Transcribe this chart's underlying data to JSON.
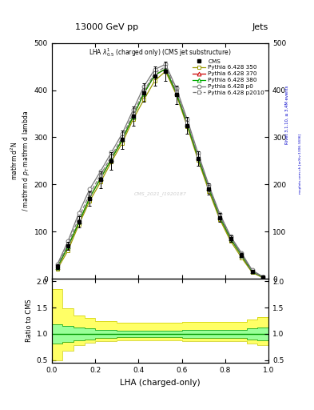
{
  "title_top": "13000 GeV pp",
  "title_right": "Jets",
  "plot_title": "LHA $\\lambda^{1}_{0.5}$ (charged only) (CMS jet substructure)",
  "xlabel": "LHA (charged-only)",
  "watermark": "CMS_2021_I1920187",
  "rivet_label": "Rivet 3.1.10, ≥ 3.4M events",
  "mcplots_label": "mcplots.cern.ch [arXiv:1306.3436]",
  "xbins": [
    0.0,
    0.05,
    0.1,
    0.15,
    0.2,
    0.25,
    0.3,
    0.35,
    0.4,
    0.45,
    0.5,
    0.55,
    0.6,
    0.65,
    0.7,
    0.75,
    0.8,
    0.85,
    0.9,
    0.95,
    1.0
  ],
  "cms_y": [
    25,
    70,
    120,
    170,
    210,
    250,
    295,
    345,
    395,
    430,
    440,
    390,
    325,
    255,
    190,
    130,
    85,
    50,
    15,
    3
  ],
  "cms_yerr": [
    5,
    8,
    12,
    16,
    18,
    19,
    20,
    20,
    20,
    20,
    20,
    20,
    18,
    15,
    12,
    9,
    7,
    4,
    2,
    1
  ],
  "p350_y": [
    20,
    60,
    115,
    165,
    205,
    248,
    288,
    338,
    380,
    420,
    440,
    390,
    323,
    252,
    186,
    126,
    80,
    45,
    13,
    2
  ],
  "p370_y": [
    24,
    68,
    120,
    172,
    213,
    254,
    295,
    344,
    393,
    432,
    445,
    394,
    328,
    257,
    192,
    131,
    85,
    50,
    15,
    3
  ],
  "p380_y": [
    24,
    68,
    120,
    172,
    213,
    254,
    295,
    344,
    393,
    432,
    445,
    394,
    328,
    257,
    192,
    131,
    85,
    50,
    15,
    3
  ],
  "p0_y": [
    30,
    80,
    140,
    190,
    228,
    268,
    308,
    358,
    408,
    444,
    455,
    404,
    338,
    266,
    198,
    138,
    90,
    55,
    18,
    4
  ],
  "p2010_y": [
    27,
    73,
    130,
    180,
    220,
    260,
    300,
    350,
    398,
    436,
    450,
    398,
    332,
    261,
    195,
    134,
    88,
    52,
    16,
    3
  ],
  "ylim_main": [
    0,
    500
  ],
  "yticks_main": [
    0,
    100,
    200,
    300,
    400,
    500
  ],
  "ylim_ratio": [
    0.45,
    2.05
  ],
  "ratio_yticks": [
    0.5,
    1.0,
    1.5,
    2.0
  ],
  "green_band_lo": [
    0.82,
    0.85,
    0.88,
    0.9,
    0.92,
    0.93,
    0.94,
    0.94,
    0.94,
    0.94,
    0.94,
    0.94,
    0.93,
    0.93,
    0.93,
    0.93,
    0.93,
    0.93,
    0.9,
    0.88
  ],
  "green_band_hi": [
    1.18,
    1.15,
    1.12,
    1.1,
    1.08,
    1.07,
    1.06,
    1.06,
    1.06,
    1.06,
    1.06,
    1.06,
    1.07,
    1.07,
    1.07,
    1.07,
    1.07,
    1.07,
    1.1,
    1.12
  ],
  "yellow_band_lo": [
    0.5,
    0.68,
    0.79,
    0.83,
    0.86,
    0.87,
    0.88,
    0.88,
    0.88,
    0.88,
    0.88,
    0.88,
    0.87,
    0.87,
    0.87,
    0.87,
    0.87,
    0.87,
    0.82,
    0.78
  ],
  "yellow_band_hi": [
    1.85,
    1.48,
    1.35,
    1.3,
    1.25,
    1.24,
    1.22,
    1.22,
    1.22,
    1.22,
    1.22,
    1.22,
    1.23,
    1.23,
    1.23,
    1.23,
    1.23,
    1.23,
    1.28,
    1.32
  ],
  "color_p350": "#999900",
  "color_p370": "#cc0000",
  "color_p380": "#00aa00",
  "color_p0": "#777777",
  "color_p2010": "#777777",
  "color_cms": "#000000",
  "ylabel_lines": [
    "mathrm d$^2$N",
    "mathrm d p_T mathrm d lambda"
  ]
}
